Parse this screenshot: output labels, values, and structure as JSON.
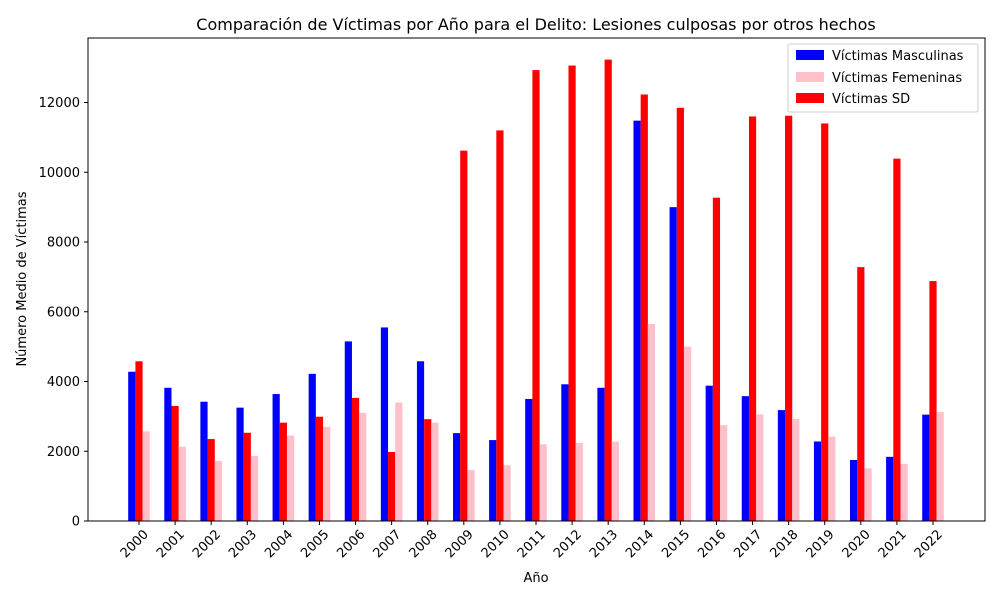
{
  "chart_data": {
    "type": "bar",
    "title": "Comparación de Víctimas por Año para el Delito: Lesiones culposas por otros hechos",
    "xlabel": "Año",
    "ylabel": "Número Medio de Víctimas",
    "ylim": [
      0,
      13850
    ],
    "yticks": [
      0,
      2000,
      4000,
      6000,
      8000,
      10000,
      12000
    ],
    "ytick_labels": [
      "0",
      "2000",
      "4000",
      "6000",
      "8000",
      "10000",
      "12000"
    ],
    "grid": false,
    "legend_position": "top-right",
    "categories": [
      "2000",
      "2001",
      "2002",
      "2003",
      "2004",
      "2005",
      "2006",
      "2007",
      "2008",
      "2009",
      "2010",
      "2011",
      "2012",
      "2013",
      "2014",
      "2015",
      "2016",
      "2017",
      "2018",
      "2019",
      "2020",
      "2021",
      "2022"
    ],
    "series": [
      {
        "name": "Víctimas Masculinas",
        "color": "#0000ff",
        "values": [
          4280,
          3820,
          3420,
          3250,
          3640,
          4220,
          5150,
          5550,
          4580,
          2520,
          2320,
          3500,
          3920,
          3820,
          11480,
          9000,
          3880,
          3580,
          3180,
          2280,
          1750,
          1840,
          3050
        ]
      },
      {
        "name": "Víctimas SD",
        "color": "#ff0000",
        "values": [
          4580,
          3300,
          2350,
          2530,
          2820,
          2990,
          3530,
          1980,
          2920,
          10620,
          11200,
          12930,
          13060,
          13230,
          12230,
          11850,
          9270,
          11600,
          11620,
          11400,
          7280,
          10390,
          6880
        ]
      },
      {
        "name": "Víctimas Femeninas",
        "color": "#ffc0cb",
        "values": [
          2570,
          2130,
          1720,
          1870,
          2450,
          2700,
          3100,
          3400,
          2820,
          1460,
          1600,
          2200,
          2240,
          2280,
          5650,
          5000,
          2750,
          3060,
          2930,
          2420,
          1510,
          1640,
          3130
        ]
      }
    ]
  }
}
